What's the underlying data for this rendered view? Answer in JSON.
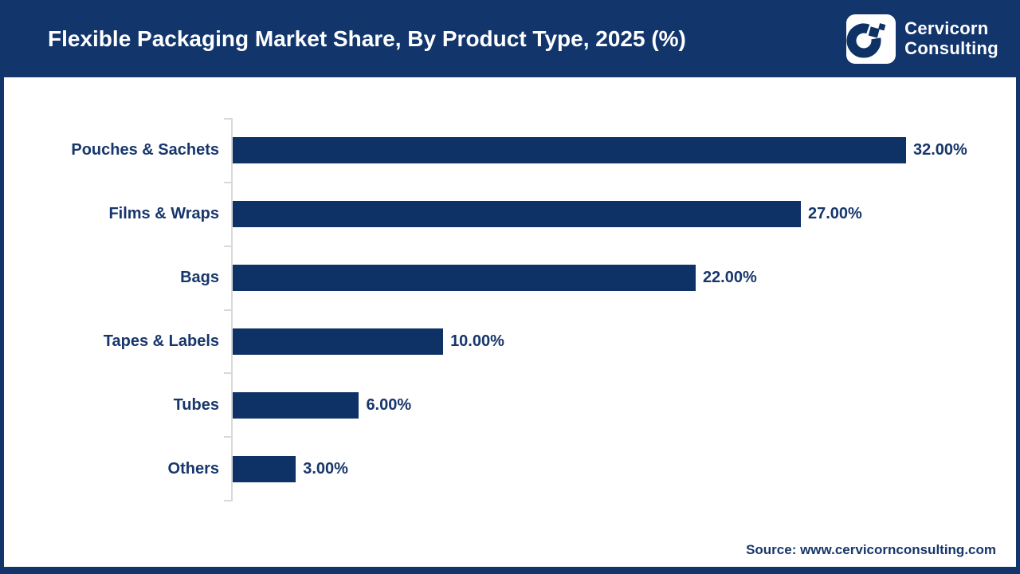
{
  "header": {
    "title": "Flexible Packaging Market Share, By Product Type, 2025 (%)",
    "logo": {
      "icon": "cervicorn-c-mark",
      "company_line1": "Cervicorn",
      "company_line2": "Consulting"
    }
  },
  "chart_data": {
    "type": "bar",
    "orientation": "horizontal",
    "title": "Flexible Packaging Market Share, By Product Type, 2025 (%)",
    "categories": [
      "Pouches & Sachets",
      "Films & Wraps",
      "Bags",
      "Tapes & Labels",
      "Tubes",
      "Others"
    ],
    "values": [
      32,
      27,
      22,
      10,
      6,
      3
    ],
    "value_labels": [
      "32.00%",
      "27.00%",
      "22.00%",
      "10.00%",
      "6.00%",
      "3.00%"
    ],
    "unit": "%",
    "xlim": [
      0,
      32
    ],
    "grid": false,
    "legend": "none",
    "bar_color": "#0e3166",
    "axis_color": "#d9d9d9",
    "label_color": "#17366b"
  },
  "footer": {
    "source": "Source: www.cervicornconsulting.com"
  },
  "colors": {
    "header_bg": "#12356c",
    "frame_border": "#12356c",
    "bar_navy": "#0e3166",
    "text_navy": "#17366b",
    "axis_gray": "#d9d9d9",
    "background": "#ffffff"
  }
}
